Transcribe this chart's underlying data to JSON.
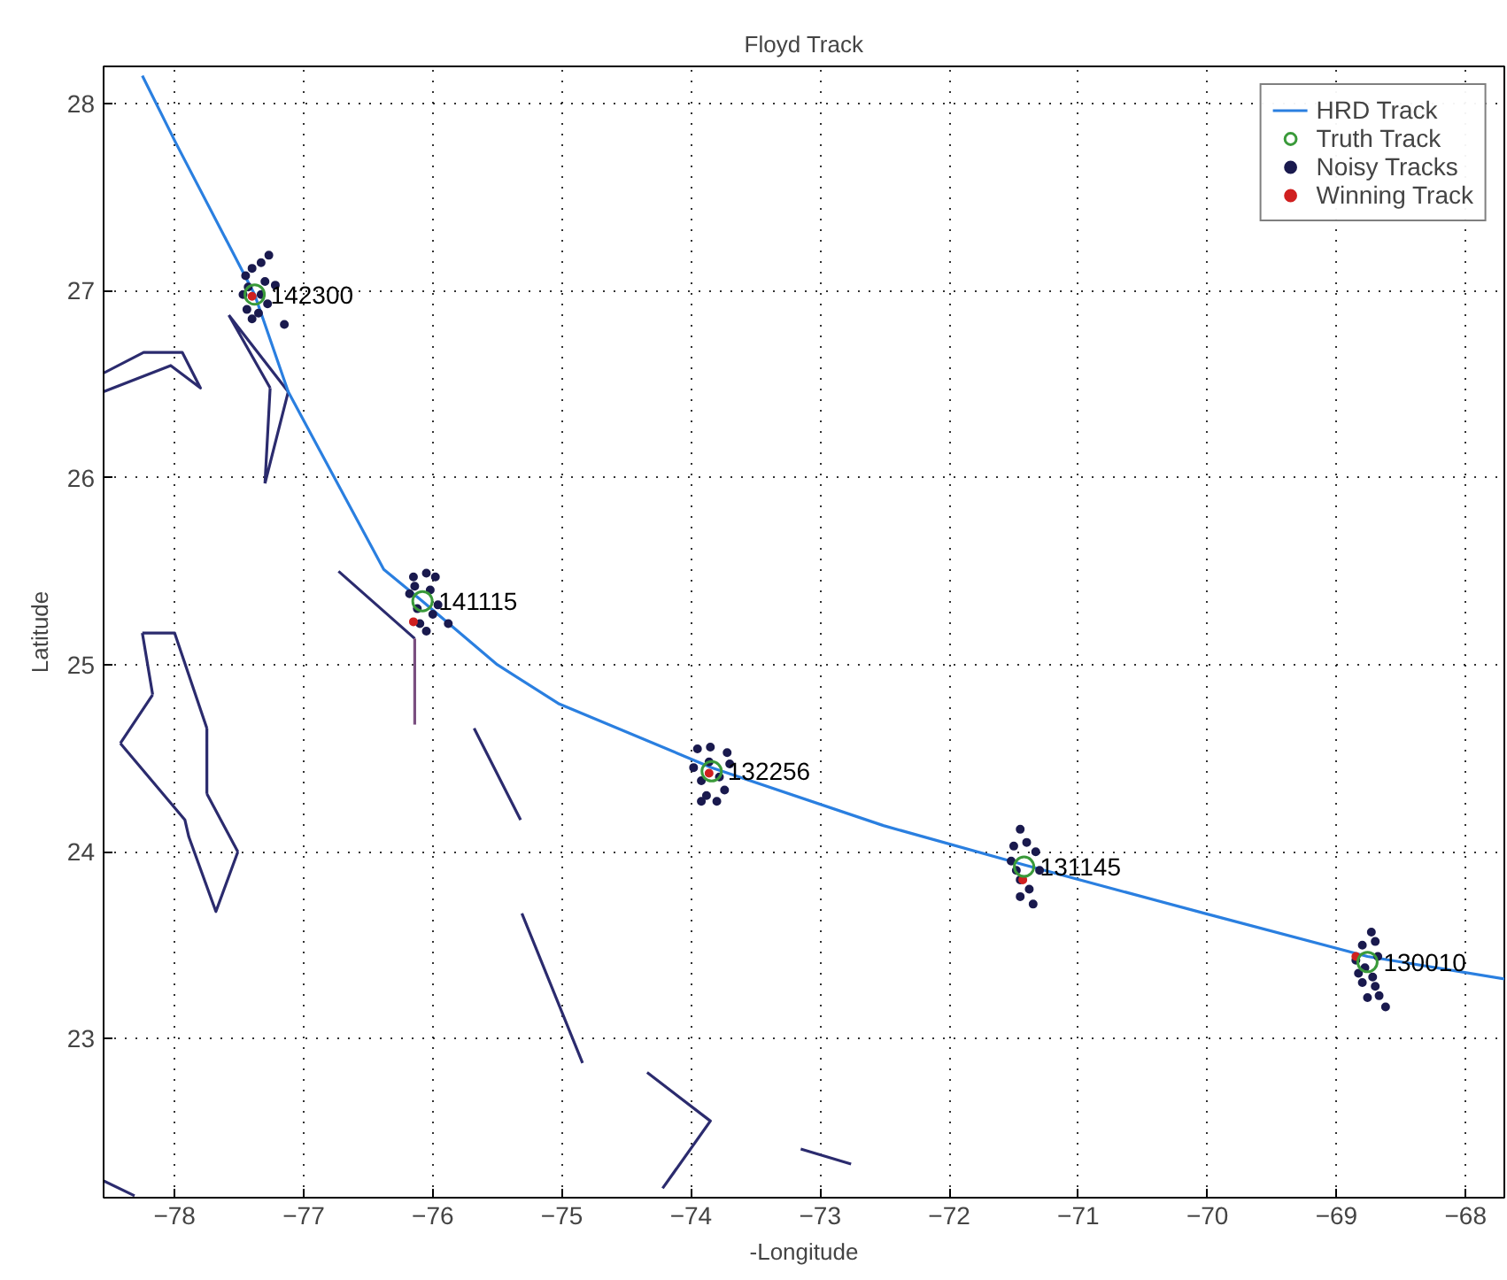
{
  "chart_data": {
    "type": "line",
    "title": "Floyd Track",
    "xlabel": "-Longitude",
    "ylabel": "Latitude",
    "xlim": [
      -78.55,
      -67.7
    ],
    "ylim": [
      22.15,
      28.2
    ],
    "xticks": [
      -78,
      -77,
      -76,
      -75,
      -74,
      -73,
      -72,
      -71,
      -70,
      -69,
      -68
    ],
    "yticks": [
      23,
      24,
      25,
      26,
      27,
      28
    ],
    "grid": true,
    "legend": "top right",
    "series": [
      {
        "color": "#2b2b6e",
        "x": [
          -78.55,
          -78.24,
          -77.94,
          -77.8,
          -78.03,
          -78.55,
          null,
          -77.58,
          -77.12,
          null,
          -77.12,
          -77.3,
          null,
          -77.3,
          -77.26,
          null,
          -77.26,
          -77.58,
          null,
          -76.73,
          -76.14,
          null,
          -75.68,
          -75.32,
          null,
          -78.25,
          -78.0,
          -77.75,
          null,
          -77.75,
          -77.75,
          null,
          -77.75,
          -77.51,
          null,
          -77.51,
          -77.68,
          -77.89,
          -77.92,
          -78.42,
          null,
          -78.42,
          -78.17,
          null,
          -78.17,
          -78.25,
          null,
          -75.31,
          -74.84,
          null,
          -74.34,
          -73.85,
          -74.22,
          null,
          -73.15,
          -72.76,
          null,
          -78.55,
          -78.31
        ],
        "values": [
          26.56,
          26.67,
          26.67,
          26.48,
          26.6,
          26.46,
          null,
          26.87,
          26.46,
          null,
          26.46,
          25.97,
          null,
          25.97,
          26.48,
          null,
          26.48,
          26.87,
          null,
          25.5,
          25.14,
          null,
          24.66,
          24.17,
          null,
          25.17,
          25.17,
          24.66,
          null,
          24.66,
          24.31,
          null,
          24.31,
          24.0,
          null,
          24.0,
          23.68,
          24.08,
          24.17,
          24.58,
          null,
          24.58,
          24.84,
          null,
          24.84,
          25.17,
          null,
          23.67,
          22.87,
          null,
          22.82,
          22.56,
          22.2,
          null,
          22.41,
          22.33,
          null,
          22.24,
          22.16
        ]
      },
      {
        "color": "#7a4f80",
        "x": [
          -76.14,
          -76.14
        ],
        "values": [
          25.14,
          24.68
        ]
      },
      {
        "name": "HRD Track",
        "color": "#2a7fe0",
        "x": [
          -78.25,
          -77.99,
          -77.38,
          -77.12,
          -76.38,
          -76.08,
          -75.5,
          -75.02,
          -73.84,
          -72.51,
          -71.42,
          -70.02,
          -68.76,
          -67.7
        ],
        "values": [
          28.15,
          27.79,
          26.98,
          26.46,
          25.51,
          25.34,
          25.0,
          24.79,
          24.45,
          24.14,
          23.93,
          23.67,
          23.44,
          23.32
        ]
      },
      {
        "type": "scatter",
        "name": "Truth Track",
        "color": "#3a9a3a",
        "marker": "circle",
        "x": [
          -77.38,
          -76.08,
          -73.84,
          -71.42,
          -68.76
        ],
        "values": [
          26.98,
          25.34,
          24.43,
          23.92,
          23.41
        ]
      },
      {
        "type": "scatter",
        "name": "Noisy Tracks",
        "color": "#1a1a4e",
        "x": [
          -77.45,
          -77.4,
          -77.33,
          -77.27,
          -77.3,
          -77.47,
          -77.44,
          -77.35,
          -77.28,
          -77.22,
          -77.15,
          -77.4,
          -77.33,
          -77.43,
          -76.15,
          -76.05,
          -75.98,
          -76.18,
          -76.12,
          -76.02,
          -75.96,
          -76.1,
          -76.05,
          -75.88,
          -76.14,
          -76.0,
          -73.95,
          -73.85,
          -73.72,
          -73.98,
          -73.92,
          -73.78,
          -73.7,
          -73.88,
          -73.8,
          -73.92,
          -73.74,
          -73.86,
          -71.45,
          -71.5,
          -71.4,
          -71.52,
          -71.33,
          -71.3,
          -71.45,
          -71.38,
          -71.45,
          -71.35,
          -71.48,
          -68.73,
          -68.7,
          -68.8,
          -68.85,
          -68.68,
          -68.83,
          -68.72,
          -68.8,
          -68.7,
          -68.76,
          -68.67,
          -68.62,
          -68.78
        ],
        "values": [
          27.08,
          27.12,
          27.15,
          27.19,
          27.05,
          26.98,
          26.9,
          26.88,
          26.93,
          27.03,
          26.82,
          26.85,
          26.98,
          27.02,
          25.47,
          25.49,
          25.47,
          25.38,
          25.3,
          25.4,
          25.32,
          25.22,
          25.18,
          25.22,
          25.42,
          25.27,
          24.55,
          24.56,
          24.53,
          24.45,
          24.38,
          24.4,
          24.47,
          24.3,
          24.27,
          24.27,
          24.33,
          24.48,
          24.12,
          24.03,
          24.05,
          23.95,
          24.0,
          23.9,
          23.85,
          23.8,
          23.76,
          23.72,
          23.9,
          23.57,
          23.52,
          23.5,
          23.42,
          23.44,
          23.35,
          23.33,
          23.3,
          23.28,
          23.22,
          23.23,
          23.17,
          23.38
        ]
      },
      {
        "type": "scatter",
        "name": "Winning Track",
        "color": "#d02020",
        "x": [
          -77.4,
          -76.15,
          -73.86,
          -71.43,
          -68.85
        ],
        "values": [
          26.97,
          25.23,
          24.42,
          23.85,
          23.44
        ]
      }
    ],
    "annotations": [
      {
        "text": "142300",
        "x": -77.38,
        "y": 26.98
      },
      {
        "text": "141115",
        "x": -76.08,
        "y": 25.34
      },
      {
        "text": "132256",
        "x": -73.84,
        "y": 24.43
      },
      {
        "text": "131145",
        "x": -71.42,
        "y": 23.92
      },
      {
        "text": "130010",
        "x": -68.76,
        "y": 23.41
      }
    ]
  }
}
